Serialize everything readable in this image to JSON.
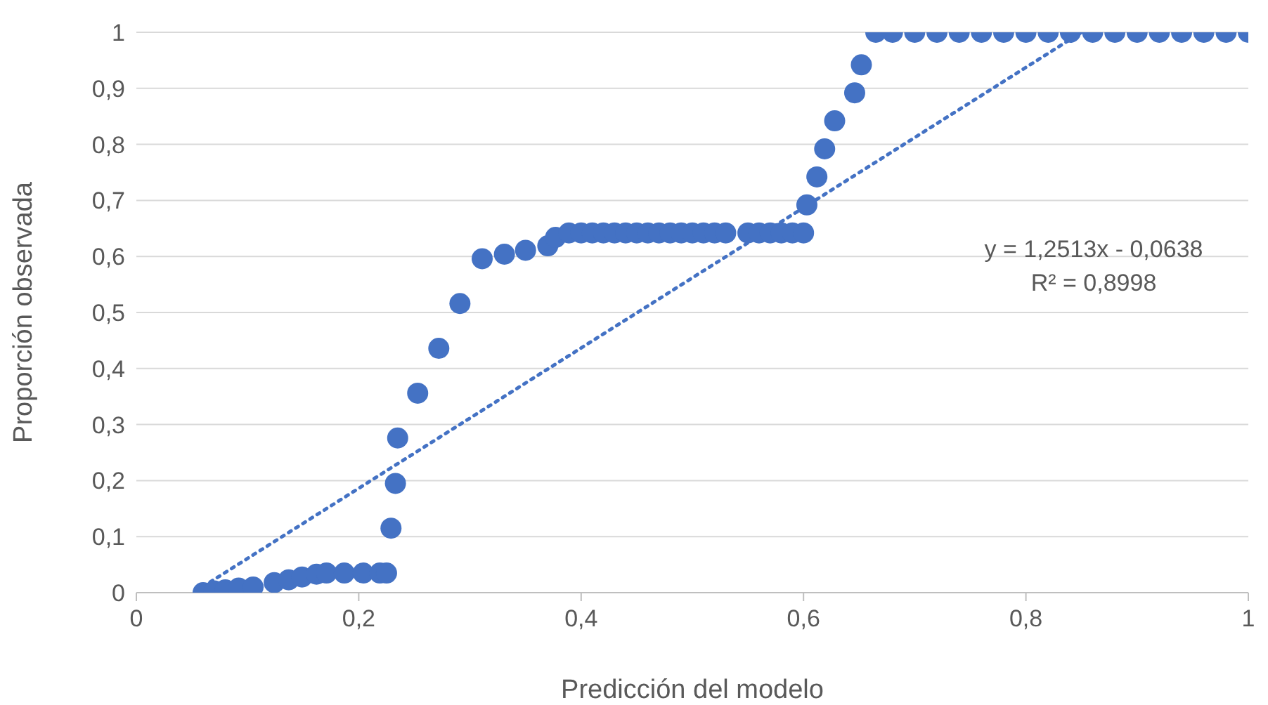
{
  "chart_data": {
    "type": "scatter",
    "xlabel": "Predicción del modelo",
    "ylabel": "Proporción observada",
    "xlim": [
      0,
      1
    ],
    "xticks": [
      0,
      {
        "value": 0.2,
        "label": "0,2"
      },
      {
        "value": 0.4,
        "label": "0,4"
      },
      {
        "value": 0.6,
        "label": "0,6"
      },
      {
        "value": 0.8,
        "label": "0,8"
      },
      1
    ],
    "ylim": [
      0,
      1
    ],
    "yticks": [
      0,
      {
        "value": 0.1,
        "label": "0,1"
      },
      {
        "value": 0.2,
        "label": "0,2"
      },
      {
        "value": 0.3,
        "label": "0,3"
      },
      {
        "value": 0.4,
        "label": "0,4"
      },
      {
        "value": 0.5,
        "label": "0,5"
      },
      {
        "value": 0.6,
        "label": "0,6"
      },
      {
        "value": 0.7,
        "label": "0,7"
      },
      {
        "value": 0.8,
        "label": "0,8"
      },
      {
        "value": 0.9,
        "label": "0,9"
      },
      {
        "value": 1,
        "label": "1"
      }
    ],
    "grid": "y",
    "marker": "circle",
    "annotations": [
      "y = 1,2513x - 0,0638",
      "R² = 0,8998"
    ],
    "series": [
      {
        "color": "#4472c4",
        "x": [
          0.06,
          0.07,
          0.08,
          0.092,
          0.105,
          0.124,
          0.137,
          0.149,
          0.162,
          0.171,
          0.187,
          0.204,
          0.219,
          0.225,
          0.229,
          0.233,
          0.235,
          0.253,
          0.272,
          0.291,
          0.311,
          0.331,
          0.35,
          0.37,
          0.377,
          0.389,
          0.4,
          0.41,
          0.42,
          0.43,
          0.44,
          0.45,
          0.46,
          0.47,
          0.48,
          0.49,
          0.5,
          0.51,
          0.52,
          0.53,
          0.55,
          0.56,
          0.57,
          0.58,
          0.59,
          0.6,
          0.603,
          0.612,
          0.619,
          0.628,
          0.646,
          0.652,
          0.665,
          0.68,
          0.7,
          0.72,
          0.74,
          0.76,
          0.78,
          0.8,
          0.82,
          0.84,
          0.86,
          0.88,
          0.9,
          0.92,
          0.94,
          0.96,
          0.98,
          1.0
        ],
        "values": [
          0,
          0.003,
          0.005,
          0.008,
          0.01,
          0.018,
          0.023,
          0.028,
          0.033,
          0.035,
          0.035,
          0.035,
          0.035,
          0.035,
          0.115,
          0.195,
          0.276,
          0.356,
          0.436,
          0.516,
          0.596,
          0.604,
          0.611,
          0.619,
          0.634,
          0.642,
          0.642,
          0.642,
          0.642,
          0.642,
          0.642,
          0.642,
          0.642,
          0.642,
          0.642,
          0.642,
          0.642,
          0.642,
          0.642,
          0.642,
          0.642,
          0.642,
          0.642,
          0.642,
          0.642,
          0.642,
          0.692,
          0.742,
          0.792,
          0.842,
          0.892,
          0.942,
          1,
          1,
          1,
          1,
          1,
          1,
          1,
          1,
          1,
          1,
          1,
          1,
          1,
          1,
          1,
          1,
          1,
          1
        ]
      },
      {
        "type": "line",
        "color": "#4472c4",
        "line_style": "dotted",
        "marker": "none",
        "x": [
          0.06,
          0.85
        ],
        "values": [
          0.011,
          1
        ]
      }
    ]
  }
}
